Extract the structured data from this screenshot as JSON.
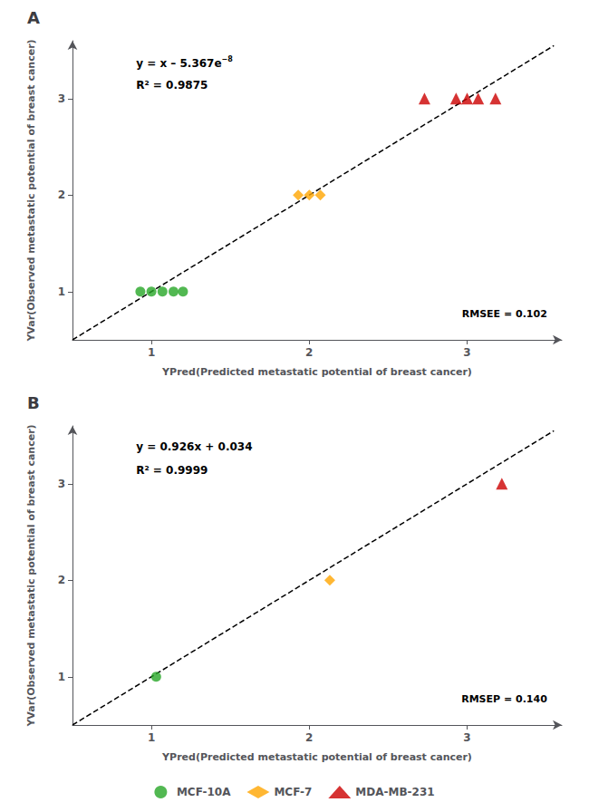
{
  "chart_data": [
    {
      "type": "scatter",
      "title": "A",
      "xlabel": "YPred(Predicted metastatic potential of breast cancer)",
      "ylabel": "YVar(Observed metastatic potential of breast cancer)",
      "xlim": [
        0.5,
        3.6
      ],
      "ylim": [
        0.5,
        3.6
      ],
      "xticks": [
        1,
        2,
        3
      ],
      "yticks": [
        1,
        2,
        3
      ],
      "grid": false,
      "legend": "bottom",
      "annotations": [
        {
          "text": "y = x – 5.367e",
          "superscript": "−8"
        },
        {
          "text": "R² = 0.9875"
        }
      ],
      "footnote": "RMSEE = 0.102",
      "series": [
        {
          "type": "line",
          "x": [
            0.5,
            3.55
          ],
          "values": [
            0.5,
            3.55
          ],
          "line_style": "dashed",
          "color": "black"
        },
        {
          "name": "MCF-10A",
          "marker": "circle",
          "color": "#27a627",
          "x": [
            0.93,
            1.0,
            1.07,
            1.14,
            1.2
          ],
          "values": [
            1.0,
            1.0,
            1.0,
            1.0,
            1.0
          ]
        },
        {
          "name": "MCF-7",
          "marker": "diamond",
          "color": "#FFA500",
          "x": [
            1.93,
            2.0,
            2.07
          ],
          "values": [
            2.0,
            2.0,
            2.0
          ]
        },
        {
          "name": "MDA-MB-231",
          "marker": "triangle",
          "color": "#cc0000",
          "x": [
            2.73,
            2.93,
            3.0,
            3.07,
            3.18
          ],
          "values": [
            3.0,
            3.0,
            3.0,
            3.0,
            3.0
          ]
        }
      ]
    },
    {
      "type": "scatter",
      "title": "B",
      "xlabel": "YPred(Predicted metastatic potential of breast cancer)",
      "ylabel": "YVar(Observed metastatic potential of breast cancer)",
      "xlim": [
        0.5,
        3.6
      ],
      "ylim": [
        0.5,
        3.6
      ],
      "xticks": [
        1,
        2,
        3
      ],
      "yticks": [
        1,
        2,
        3
      ],
      "grid": false,
      "legend": "bottom",
      "annotations": [
        {
          "text": "y = 0.926x + 0.034"
        },
        {
          "text": "R² = 0.9999"
        }
      ],
      "footnote": "RMSEP = 0.140",
      "series": [
        {
          "type": "line",
          "x": [
            0.5,
            3.55
          ],
          "values": [
            0.5,
            3.55
          ],
          "line_style": "dashed",
          "color": "black"
        },
        {
          "name": "MCF-10A",
          "marker": "circle",
          "color": "#27a627",
          "x": [
            1.03
          ],
          "values": [
            1.0
          ]
        },
        {
          "name": "MCF-7",
          "marker": "diamond",
          "color": "#FFA500",
          "x": [
            2.13
          ],
          "values": [
            2.0
          ]
        },
        {
          "name": "MDA-MB-231",
          "marker": "triangle",
          "color": "#cc0000",
          "x": [
            3.22
          ],
          "values": [
            3.0
          ]
        }
      ]
    }
  ]
}
